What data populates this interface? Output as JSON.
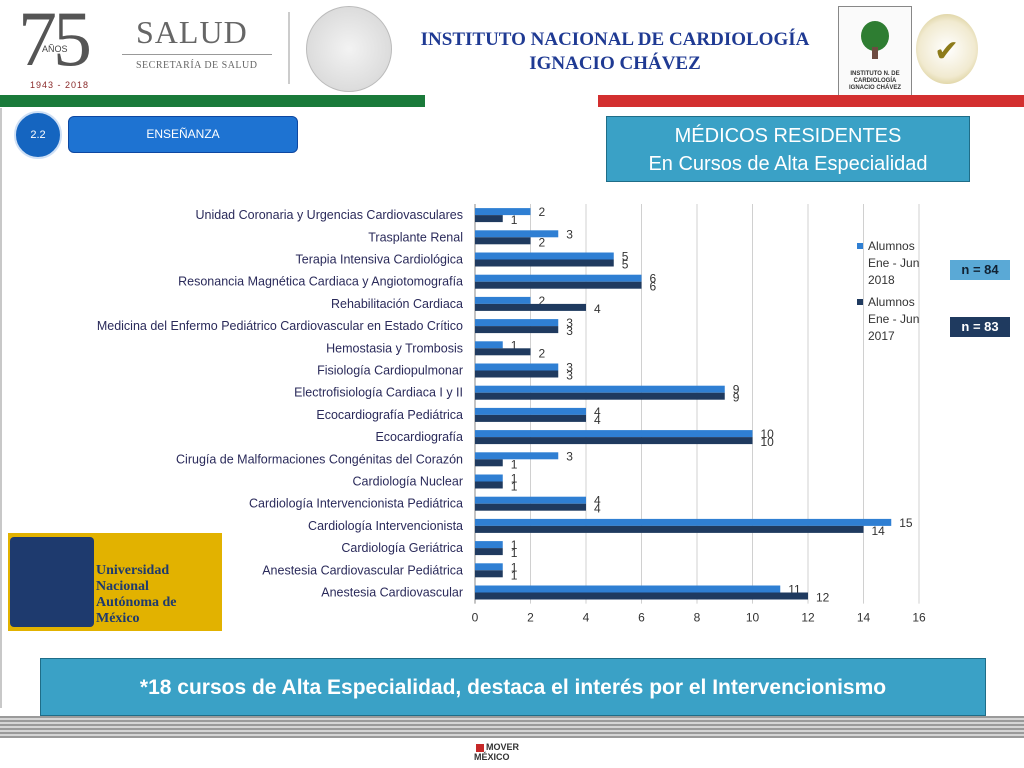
{
  "header": {
    "anniversary_number": "75",
    "anniversary_word": "AÑOS",
    "anniversary_years": "1943 - 2018",
    "salud_title": "SALUD",
    "salud_subtitle": "SECRETARÍA DE SALUD",
    "institute_line1": "INSTITUTO NACIONAL DE CARDIOLOGÍA",
    "institute_line2": "IGNACIO CHÁVEZ",
    "institute_logo_text": "INSTITUTO N. DE CARDIOLOGÍA IGNACIO CHÁVEZ"
  },
  "section": {
    "number": "2.2",
    "label": "ENSEÑANZA"
  },
  "title_box": {
    "line1": "MÉDICOS RESIDENTES",
    "line2": "En Cursos de Alta Especialidad"
  },
  "totals": {
    "n_2018": "n = 84",
    "n_2017": "n = 83"
  },
  "unam": {
    "name_line1": "Universidad Nacional",
    "name_line2": "Autónoma de México"
  },
  "footer": {
    "message": "*18 cursos de Alta Especialidad, destaca el interés por el Intervencionismo"
  },
  "bottom_logo": {
    "text": "MOVER MÉXICO"
  },
  "colors": {
    "series_2018": "#2f7fd3",
    "series_2017": "#1f3a5f",
    "accent_box": "#3aa1c6"
  },
  "chart_data": {
    "type": "bar",
    "orientation": "horizontal",
    "categories": [
      "Unidad Coronaria y Urgencias Cardiovasculares",
      "Trasplante Renal",
      "Terapia Intensiva Cardiológica",
      "Resonancia Magnética Cardiaca y Angiotomografía",
      "Rehabilitación Cardiaca",
      "Medicina del Enfermo Pediátrico Cardiovascular en Estado Crítico",
      "Hemostasia y Trombosis",
      "Fisiología Cardiopulmonar",
      "Electrofisiología Cardiaca I y II",
      "Ecocardiografía Pediátrica",
      "Ecocardiografía",
      "Cirugía de Malformaciones Congénitas del Corazón",
      "Cardiología Nuclear",
      "Cardiología Intervencionista Pediátrica",
      "Cardiología Intervencionista",
      "Cardiología Geriátrica",
      "Anestesia Cardiovascular Pediátrica",
      "Anestesia Cardiovascular"
    ],
    "series": [
      {
        "name": "Alumnos Ene - Jun 2018",
        "values": [
          2,
          3,
          5,
          6,
          2,
          3,
          1,
          3,
          9,
          4,
          10,
          3,
          1,
          4,
          15,
          1,
          1,
          11
        ]
      },
      {
        "name": "Alumnos Ene - Jun 2017",
        "values": [
          1,
          2,
          5,
          6,
          4,
          3,
          2,
          3,
          9,
          4,
          10,
          1,
          1,
          4,
          14,
          1,
          1,
          12
        ]
      }
    ],
    "xlim": [
      0,
      16
    ],
    "xticks": [
      0,
      2,
      4,
      6,
      8,
      10,
      12,
      14,
      16
    ],
    "legend_position": "right",
    "grid": true
  }
}
